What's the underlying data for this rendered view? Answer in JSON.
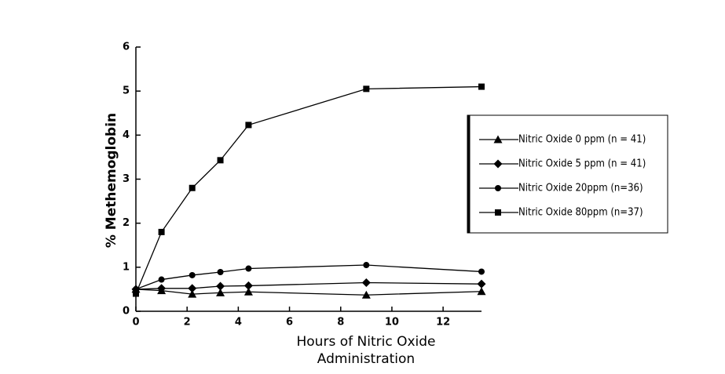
{
  "chart_data": {
    "type": "line",
    "x_label": [
      "Hours of Nitric Oxide",
      "Administration"
    ],
    "y_label": "% Methemoglobin",
    "xlim": [
      0,
      13.5
    ],
    "xticks": [
      0,
      2,
      4,
      6,
      8,
      10,
      12
    ],
    "ylim": [
      0,
      6
    ],
    "yticks": [
      0,
      1,
      2,
      3,
      4,
      5,
      6
    ],
    "x": [
      0,
      1,
      2.2,
      3.3,
      4.4,
      9,
      13.5
    ],
    "series": [
      {
        "name": "Nitric Oxide 0 ppm (n = 41)",
        "color": "#000000",
        "marker": "triangle",
        "values": [
          0.5,
          0.47,
          0.39,
          0.42,
          0.44,
          0.37,
          0.45
        ]
      },
      {
        "name": "Nitric Oxide 5 ppm (n = 41)",
        "color": "#000000",
        "marker": "diamond",
        "values": [
          0.5,
          0.52,
          0.52,
          0.57,
          0.58,
          0.65,
          0.62
        ]
      },
      {
        "name": "Nitric Oxide 20ppm (n=36)",
        "color": "#000000",
        "marker": "circle",
        "values": [
          0.5,
          0.72,
          0.82,
          0.89,
          0.97,
          1.05,
          0.9
        ]
      },
      {
        "name": "Nitric Oxide 80ppm (n=37)",
        "color": "#000000",
        "marker": "square",
        "values": [
          0.4,
          1.8,
          2.8,
          3.43,
          4.23,
          5.05,
          5.1
        ]
      }
    ],
    "legend": "right"
  }
}
